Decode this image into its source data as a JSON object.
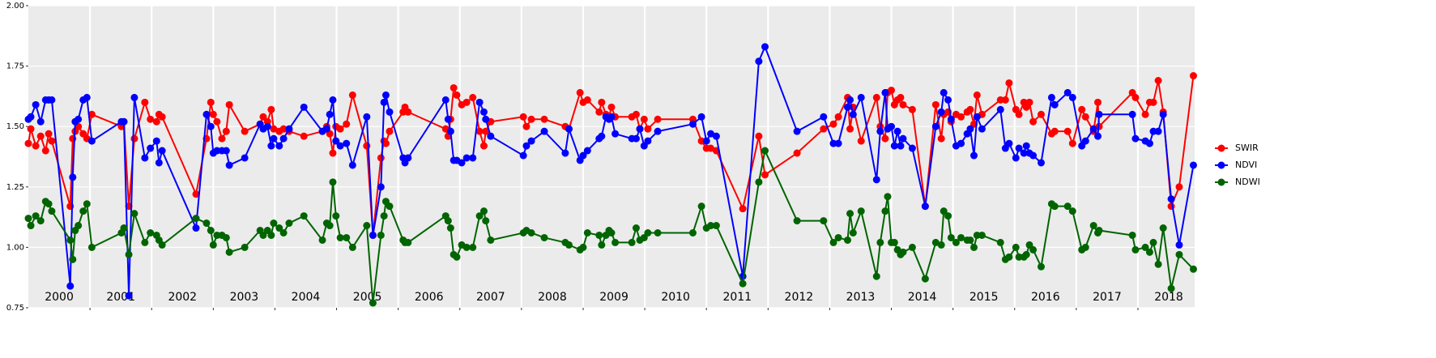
{
  "chart_data": {
    "type": "line",
    "x": [
      2000.0,
      2000.04,
      2000.12,
      2000.2,
      2000.28,
      2000.33,
      2000.38,
      2000.68,
      2000.72,
      2000.76,
      2000.81,
      2000.89,
      2000.95,
      2001.03,
      2001.51,
      2001.55,
      2001.63,
      2001.72,
      2001.89,
      2001.98,
      2002.08,
      2002.12,
      2002.17,
      2002.72,
      2002.89,
      2002.96,
      2003.0,
      2003.06,
      2003.14,
      2003.21,
      2003.26,
      2003.51,
      2003.76,
      2003.81,
      2003.88,
      2003.94,
      2003.98,
      2004.07,
      2004.14,
      2004.23,
      2004.47,
      2004.77,
      2004.84,
      2004.89,
      2004.94,
      2004.99,
      2005.06,
      2005.16,
      2005.26,
      2005.49,
      2005.59,
      2005.72,
      2005.77,
      2005.8,
      2005.86,
      2006.08,
      2006.11,
      2006.16,
      2006.77,
      2006.81,
      2006.85,
      2006.9,
      2006.95,
      2007.03,
      2007.11,
      2007.21,
      2007.32,
      2007.39,
      2007.42,
      2007.5,
      2008.03,
      2008.08,
      2008.16,
      2008.37,
      2008.71,
      2008.77,
      2008.95,
      2009.0,
      2009.07,
      2009.26,
      2009.3,
      2009.37,
      2009.42,
      2009.46,
      2009.52,
      2009.79,
      2009.86,
      2009.92,
      2009.99,
      2010.05,
      2010.21,
      2010.78,
      2010.92,
      2011.0,
      2011.07,
      2011.16,
      2011.59,
      2011.85,
      2011.95,
      2012.47,
      2012.9,
      2013.06,
      2013.14,
      2013.29,
      2013.33,
      2013.38,
      2013.51,
      2013.76,
      2013.82,
      2013.9,
      2013.94,
      2014.0,
      2014.05,
      2014.1,
      2014.15,
      2014.19,
      2014.34,
      2014.55,
      2014.72,
      2014.81,
      2014.85,
      2014.92,
      2014.97,
      2015.05,
      2015.13,
      2015.23,
      2015.28,
      2015.34,
      2015.39,
      2015.47,
      2015.77,
      2015.85,
      2015.91,
      2016.02,
      2016.07,
      2016.15,
      2016.19,
      2016.24,
      2016.3,
      2016.43,
      2016.6,
      2016.65,
      2016.86,
      2016.94,
      2017.09,
      2017.15,
      2017.28,
      2017.35,
      2017.37,
      2017.91,
      2017.96,
      2018.12,
      2018.19,
      2018.25,
      2018.33,
      2018.41,
      2018.54,
      2018.67,
      2018.9
    ],
    "series": [
      {
        "name": "SWIR",
        "color": "#ff0000",
        "values": [
          1.43,
          1.49,
          1.42,
          1.46,
          1.4,
          1.47,
          1.44,
          1.17,
          1.45,
          1.48,
          1.5,
          1.47,
          1.45,
          1.55,
          1.5,
          1.52,
          1.17,
          1.45,
          1.6,
          1.53,
          1.52,
          1.55,
          1.54,
          1.22,
          1.45,
          1.6,
          1.55,
          1.52,
          1.45,
          1.48,
          1.59,
          1.48,
          1.51,
          1.54,
          1.52,
          1.57,
          1.49,
          1.48,
          1.49,
          1.48,
          1.46,
          1.48,
          1.5,
          1.47,
          1.39,
          1.5,
          1.49,
          1.51,
          1.63,
          1.42,
          1.05,
          1.37,
          1.44,
          1.43,
          1.48,
          1.56,
          1.58,
          1.56,
          1.49,
          1.46,
          1.53,
          1.66,
          1.63,
          1.59,
          1.6,
          1.62,
          1.48,
          1.42,
          1.48,
          1.52,
          1.54,
          1.5,
          1.53,
          1.53,
          1.5,
          1.49,
          1.64,
          1.6,
          1.61,
          1.56,
          1.6,
          1.55,
          1.54,
          1.58,
          1.54,
          1.54,
          1.55,
          1.49,
          1.53,
          1.49,
          1.53,
          1.53,
          1.44,
          1.41,
          1.41,
          1.4,
          1.16,
          1.46,
          1.3,
          1.39,
          1.49,
          1.51,
          1.54,
          1.62,
          1.49,
          1.58,
          1.44,
          1.62,
          1.5,
          1.45,
          1.64,
          1.65,
          1.59,
          1.61,
          1.62,
          1.59,
          1.57,
          1.17,
          1.59,
          1.45,
          1.55,
          1.56,
          1.52,
          1.55,
          1.54,
          1.56,
          1.57,
          1.51,
          1.63,
          1.55,
          1.61,
          1.61,
          1.68,
          1.57,
          1.55,
          1.6,
          1.58,
          1.6,
          1.52,
          1.55,
          1.47,
          1.48,
          1.48,
          1.43,
          1.57,
          1.54,
          1.48,
          1.6,
          1.5,
          1.64,
          1.62,
          1.55,
          1.6,
          1.6,
          1.69,
          1.56,
          1.17,
          1.25,
          1.71
        ]
      },
      {
        "name": "NDVI",
        "color": "#0000ff",
        "values": [
          1.53,
          1.54,
          1.59,
          1.52,
          1.61,
          1.61,
          1.61,
          0.84,
          1.29,
          1.52,
          1.53,
          1.61,
          1.62,
          1.44,
          1.52,
          1.52,
          0.8,
          1.62,
          1.37,
          1.41,
          1.44,
          1.35,
          1.4,
          1.08,
          1.55,
          1.5,
          1.39,
          1.4,
          1.4,
          1.4,
          1.34,
          1.37,
          1.51,
          1.49,
          1.5,
          1.42,
          1.45,
          1.42,
          1.45,
          1.49,
          1.58,
          1.48,
          1.49,
          1.55,
          1.61,
          1.44,
          1.42,
          1.43,
          1.34,
          1.54,
          1.05,
          1.25,
          1.6,
          1.63,
          1.56,
          1.37,
          1.35,
          1.37,
          1.61,
          1.53,
          1.48,
          1.36,
          1.36,
          1.35,
          1.37,
          1.37,
          1.6,
          1.56,
          1.53,
          1.46,
          1.38,
          1.42,
          1.44,
          1.48,
          1.39,
          1.49,
          1.36,
          1.38,
          1.4,
          1.45,
          1.46,
          1.54,
          1.53,
          1.54,
          1.47,
          1.45,
          1.45,
          1.49,
          1.42,
          1.44,
          1.48,
          1.51,
          1.54,
          1.44,
          1.47,
          1.46,
          0.88,
          1.77,
          1.83,
          1.48,
          1.54,
          1.43,
          1.43,
          1.58,
          1.61,
          1.55,
          1.62,
          1.28,
          1.48,
          1.64,
          1.49,
          1.5,
          1.42,
          1.48,
          1.42,
          1.45,
          1.41,
          1.17,
          1.5,
          1.56,
          1.64,
          1.61,
          1.53,
          1.42,
          1.43,
          1.47,
          1.49,
          1.38,
          1.54,
          1.49,
          1.57,
          1.41,
          1.43,
          1.37,
          1.41,
          1.39,
          1.42,
          1.39,
          1.38,
          1.35,
          1.62,
          1.59,
          1.64,
          1.62,
          1.42,
          1.44,
          1.49,
          1.46,
          1.55,
          1.55,
          1.45,
          1.44,
          1.43,
          1.48,
          1.48,
          1.55,
          1.2,
          1.01,
          1.34
        ]
      },
      {
        "name": "NDWI",
        "color": "#006400",
        "values": [
          1.12,
          1.09,
          1.13,
          1.11,
          1.19,
          1.18,
          1.15,
          1.03,
          0.95,
          1.07,
          1.09,
          1.15,
          1.18,
          1.0,
          1.06,
          1.08,
          0.97,
          1.14,
          1.02,
          1.06,
          1.05,
          1.03,
          1.01,
          1.12,
          1.1,
          1.07,
          1.01,
          1.05,
          1.05,
          1.04,
          0.98,
          1.0,
          1.07,
          1.05,
          1.07,
          1.05,
          1.1,
          1.08,
          1.06,
          1.1,
          1.13,
          1.03,
          1.1,
          1.09,
          1.27,
          1.13,
          1.04,
          1.04,
          1.0,
          1.09,
          0.77,
          1.05,
          1.13,
          1.19,
          1.17,
          1.03,
          1.02,
          1.02,
          1.13,
          1.11,
          1.08,
          0.97,
          0.96,
          1.01,
          1.0,
          1.0,
          1.13,
          1.15,
          1.11,
          1.03,
          1.06,
          1.07,
          1.06,
          1.04,
          1.02,
          1.01,
          0.99,
          1.0,
          1.06,
          1.05,
          1.01,
          1.05,
          1.07,
          1.06,
          1.02,
          1.02,
          1.08,
          1.03,
          1.04,
          1.06,
          1.06,
          1.06,
          1.17,
          1.08,
          1.09,
          1.09,
          0.85,
          1.27,
          1.4,
          1.11,
          1.11,
          1.02,
          1.04,
          1.03,
          1.14,
          1.06,
          1.15,
          0.88,
          1.02,
          1.15,
          1.21,
          1.02,
          1.02,
          0.99,
          0.97,
          0.98,
          1.0,
          0.87,
          1.02,
          1.01,
          1.15,
          1.13,
          1.04,
          1.02,
          1.04,
          1.03,
          1.03,
          1.0,
          1.05,
          1.05,
          1.02,
          0.95,
          0.96,
          1.0,
          0.96,
          0.96,
          0.97,
          1.01,
          0.99,
          0.92,
          1.18,
          1.17,
          1.17,
          1.15,
          0.99,
          1.0,
          1.09,
          1.06,
          1.07,
          1.05,
          0.99,
          1.0,
          0.98,
          1.02,
          0.93,
          1.08,
          0.83,
          0.97,
          0.91
        ]
      }
    ],
    "xlim": [
      2000,
      2018.92
    ],
    "xticks": [
      {
        "value": 2000.5,
        "label": "2000"
      },
      {
        "value": 2001.5,
        "label": "2001"
      },
      {
        "value": 2002.5,
        "label": "2002"
      },
      {
        "value": 2003.5,
        "label": "2003"
      },
      {
        "value": 2004.5,
        "label": "2004"
      },
      {
        "value": 2005.5,
        "label": "2005"
      },
      {
        "value": 2006.5,
        "label": "2006"
      },
      {
        "value": 2007.5,
        "label": "2007"
      },
      {
        "value": 2008.5,
        "label": "2008"
      },
      {
        "value": 2009.5,
        "label": "2009"
      },
      {
        "value": 2010.5,
        "label": "2010"
      },
      {
        "value": 2011.5,
        "label": "2011"
      },
      {
        "value": 2012.5,
        "label": "2012"
      },
      {
        "value": 2013.5,
        "label": "2013"
      },
      {
        "value": 2014.5,
        "label": "2014"
      },
      {
        "value": 2015.5,
        "label": "2015"
      },
      {
        "value": 2016.5,
        "label": "2016"
      },
      {
        "value": 2017.5,
        "label": "2017"
      },
      {
        "value": 2018.5,
        "label": "2018"
      }
    ],
    "xgrid": [
      2001,
      2002,
      2003,
      2004,
      2005,
      2006,
      2007,
      2008,
      2009,
      2010,
      2011,
      2012,
      2013,
      2014,
      2015,
      2016,
      2017,
      2018
    ],
    "ylim": [
      0.75,
      2.0
    ],
    "yticks": [
      0.75,
      {
        "value": 1,
        "label": "1.00"
      },
      1.25,
      {
        "value": 1.5,
        "label": "1.50"
      },
      1.75,
      {
        "value": 2,
        "label": "2.00"
      }
    ],
    "grid": true
  }
}
